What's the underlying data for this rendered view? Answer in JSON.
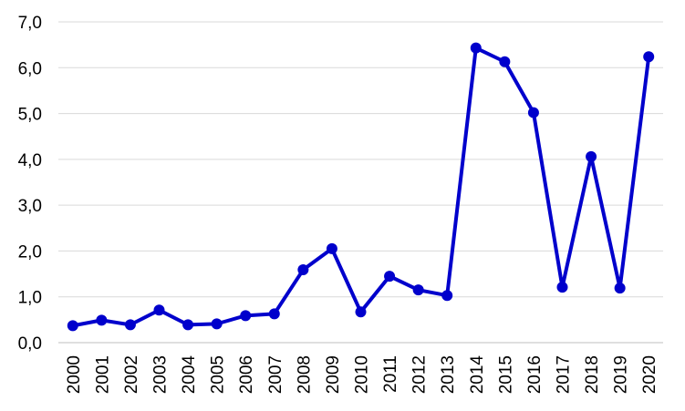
{
  "chart_data": {
    "type": "line",
    "title": "",
    "xlabel": "",
    "ylabel": "",
    "categories": [
      "2000",
      "2001",
      "2002",
      "2003",
      "2004",
      "2005",
      "2006",
      "2007",
      "2008",
      "2009",
      "2010",
      "2011",
      "2012",
      "2013",
      "2014",
      "2015",
      "2016",
      "2017",
      "2018",
      "2019",
      "2020"
    ],
    "series": [
      {
        "values": [
          0.37,
          0.49,
          0.39,
          0.71,
          0.39,
          0.41,
          0.59,
          0.63,
          1.59,
          2.05,
          0.67,
          1.45,
          1.15,
          1.03,
          6.43,
          6.13,
          5.02,
          1.21,
          4.06,
          1.19,
          6.24
        ],
        "color": "#0000cc"
      }
    ],
    "ylim": [
      0,
      7
    ],
    "yticks": [
      0,
      1,
      2,
      3,
      4,
      5,
      6,
      7
    ],
    "ytick_labels": [
      "0,0",
      "1,0",
      "2,0",
      "3,0",
      "4,0",
      "5,0",
      "6,0",
      "7,0"
    ],
    "grid": true,
    "legend": "none"
  }
}
